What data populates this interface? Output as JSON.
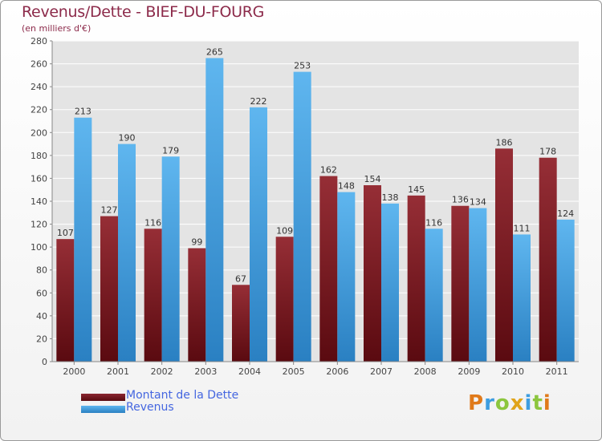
{
  "chart_data": {
    "type": "bar",
    "title": "Revenus/Dette - BIEF-DU-FOURG",
    "subtitle": "(en milliers d'€)",
    "xlabel": "",
    "ylabel": "",
    "ylim": [
      0,
      280
    ],
    "yticks": [
      0,
      20,
      40,
      60,
      80,
      100,
      120,
      140,
      160,
      180,
      200,
      220,
      240,
      260,
      280
    ],
    "grid": true,
    "legend_position": "bottom-left",
    "categories": [
      "2000",
      "2001",
      "2002",
      "2003",
      "2004",
      "2005",
      "2006",
      "2007",
      "2008",
      "2009",
      "2010",
      "2011"
    ],
    "series": [
      {
        "name": "Montant de la Dette",
        "color": "#7a1a22",
        "values": [
          107,
          127,
          116,
          99,
          67,
          109,
          162,
          154,
          145,
          136,
          186,
          178
        ]
      },
      {
        "name": "Revenus",
        "color": "#3d9de0",
        "values": [
          213,
          190,
          179,
          265,
          222,
          253,
          148,
          138,
          116,
          134,
          111,
          124
        ]
      }
    ]
  },
  "logo": {
    "letters": [
      "P",
      "r",
      "o",
      "x",
      "i",
      "t",
      "i"
    ],
    "colors": [
      "#e07a1a",
      "#3d9de0",
      "#8cc63e",
      "#e0a41a",
      "#3d9de0",
      "#8cc63e",
      "#e07a1a"
    ]
  }
}
